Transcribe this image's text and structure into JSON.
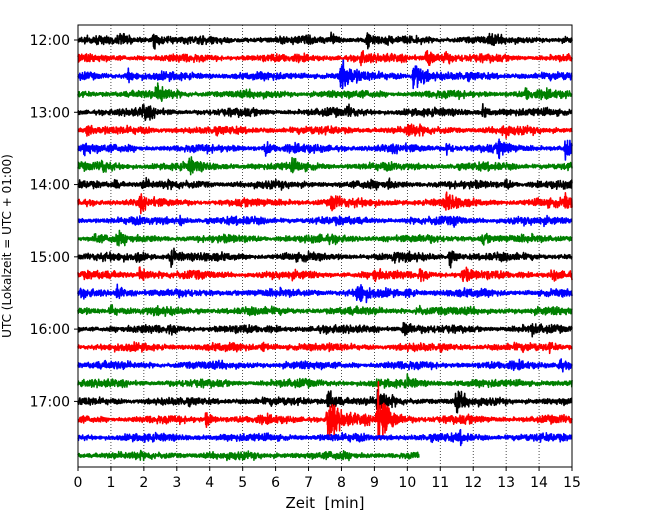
{
  "chart_data": {
    "type": "line",
    "title": "",
    "xlabel": "Zeit  [min]",
    "ylabel": "UTC (Lokalzeit = UTC + 01:00)",
    "xlim": [
      0,
      15
    ],
    "xticks": [
      0,
      1,
      2,
      3,
      4,
      5,
      6,
      7,
      8,
      9,
      10,
      11,
      12,
      13,
      14,
      15
    ],
    "yticks": [
      {
        "label": "12:00",
        "row": 0
      },
      {
        "label": "13:00",
        "row": 4
      },
      {
        "label": "14:00",
        "row": 8
      },
      {
        "label": "15:00",
        "row": 12
      },
      {
        "label": "16:00",
        "row": 16
      },
      {
        "label": "17:00",
        "row": 20
      }
    ],
    "grid": "vertical dotted lines at every minute",
    "row_interval_min": 15,
    "row_colors": [
      "#000000",
      "#ff0000",
      "#0000ff",
      "#008000"
    ],
    "series": [
      {
        "start": "12:00",
        "events": [
          [
            1.3,
            0.5
          ],
          [
            2.3,
            0.7
          ],
          [
            7.7,
            0.6
          ],
          [
            8.8,
            0.7
          ],
          [
            12.5,
            0.4
          ]
        ]
      },
      {
        "start": "12:15",
        "events": [
          [
            8.6,
            0.5
          ],
          [
            10.6,
            1.1
          ],
          [
            11.1,
            0.6
          ]
        ]
      },
      {
        "start": "12:30",
        "events": [
          [
            1.5,
            0.6
          ],
          [
            8.0,
            1.7
          ],
          [
            10.2,
            1.6
          ]
        ]
      },
      {
        "start": "12:45",
        "events": [
          [
            2.4,
            0.7
          ],
          [
            2.5,
            0.5
          ],
          [
            13.6,
            0.5
          ]
        ]
      },
      {
        "start": "13:00",
        "events": [
          [
            2.0,
            0.6
          ],
          [
            8.2,
            0.4
          ],
          [
            12.3,
            0.5
          ]
        ]
      },
      {
        "start": "13:15",
        "events": [
          [
            0.3,
            0.5
          ],
          [
            10.0,
            0.7
          ],
          [
            12.9,
            0.5
          ]
        ]
      },
      {
        "start": "13:30",
        "events": [
          [
            0.2,
            0.6
          ],
          [
            5.7,
            0.6
          ],
          [
            11.2,
            0.6
          ],
          [
            12.8,
            0.7
          ],
          [
            14.8,
            0.9
          ]
        ]
      },
      {
        "start": "13:45",
        "events": [
          [
            0.7,
            0.5
          ],
          [
            3.4,
            0.6
          ],
          [
            6.5,
            0.4
          ]
        ]
      },
      {
        "start": "14:00",
        "events": [
          [
            1.1,
            0.4
          ],
          [
            2.0,
            0.5
          ],
          [
            9.4,
            0.4
          ],
          [
            13.0,
            0.4
          ]
        ]
      },
      {
        "start": "14:15",
        "events": [
          [
            1.9,
            0.5
          ],
          [
            7.7,
            0.8
          ],
          [
            11.2,
            0.8
          ],
          [
            14.8,
            0.5
          ]
        ]
      },
      {
        "start": "14:30",
        "events": [
          [
            3.1,
            0.3
          ],
          [
            11.4,
            0.3
          ]
        ]
      },
      {
        "start": "14:45",
        "events": [
          [
            0.5,
            0.5
          ],
          [
            1.2,
            0.4
          ],
          [
            12.3,
            0.4
          ]
        ]
      },
      {
        "start": "15:00",
        "events": [
          [
            1.8,
            0.4
          ],
          [
            2.8,
            0.9
          ],
          [
            9.6,
            0.4
          ],
          [
            11.3,
            0.7
          ]
        ]
      },
      {
        "start": "15:15",
        "events": [
          [
            1.9,
            1.0
          ],
          [
            9.0,
            0.6
          ],
          [
            10.4,
            0.6
          ],
          [
            11.7,
            0.7
          ],
          [
            14.4,
            0.5
          ]
        ]
      },
      {
        "start": "15:30",
        "events": [
          [
            1.2,
            0.6
          ],
          [
            8.5,
            1.1
          ],
          [
            10.0,
            0.4
          ]
        ]
      },
      {
        "start": "15:45",
        "events": [
          [
            1.0,
            0.6
          ],
          [
            10.3,
            0.5
          ]
        ]
      },
      {
        "start": "16:00",
        "events": [
          [
            2.8,
            0.4
          ],
          [
            9.9,
            0.9
          ],
          [
            13.8,
            0.3
          ]
        ]
      },
      {
        "start": "16:15",
        "events": [
          [
            5.6,
            0.4
          ],
          [
            14.3,
            0.3
          ]
        ]
      },
      {
        "start": "16:30",
        "events": [
          [
            14.6,
            0.6
          ]
        ]
      },
      {
        "start": "16:45",
        "events": [
          [
            10.0,
            0.4
          ]
        ]
      },
      {
        "start": "17:00",
        "events": [
          [
            7.6,
            1.2
          ],
          [
            9.1,
            1.2
          ],
          [
            11.5,
            1.0
          ]
        ]
      },
      {
        "start": "17:15",
        "events": [
          [
            3.9,
            0.6
          ],
          [
            7.6,
            2.4
          ],
          [
            9.1,
            2.7
          ]
        ]
      },
      {
        "start": "17:30",
        "events": [
          [
            11.6,
            0.4
          ]
        ]
      },
      {
        "start": "17:45",
        "end": 10.35,
        "events": []
      }
    ]
  }
}
